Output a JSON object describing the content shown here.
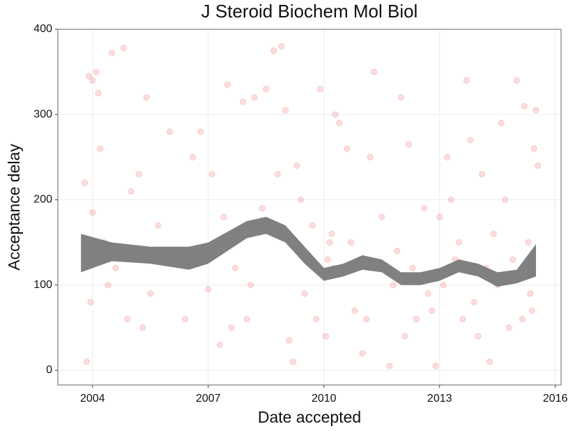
{
  "chart_data": {
    "type": "scatter",
    "title": "J Steroid Biochem Mol Biol",
    "x_label": "Date accepted",
    "y_label": "Acceptance delay",
    "xlim": [
      2003.1,
      2016.15
    ],
    "ylim": [
      -17.2,
      400
    ],
    "xticks": [
      2004,
      2007,
      2010,
      2013,
      2016
    ],
    "yticks": [
      0,
      100,
      200,
      300,
      400
    ],
    "grid": true,
    "color": "#e31a1c",
    "x": [
      2003.8,
      2003.9,
      2004.0,
      2004.1,
      2004.15,
      2003.85,
      2004.0,
      2004.2,
      2004.5,
      2004.8,
      2004.3,
      2004.6,
      2004.9,
      2005.0,
      2005.2,
      2005.4,
      2005.5,
      2005.3,
      2005.7,
      2006.0,
      2006.2,
      2006.4,
      2006.6,
      2006.8,
      2007.0,
      2007.1,
      2007.3,
      2007.5,
      2007.7,
      2007.9,
      2008.0,
      2008.2,
      2008.4,
      2008.5,
      2008.7,
      2008.9,
      2009.0,
      2009.1,
      2009.2,
      2009.3,
      2009.5,
      2009.7,
      2009.9,
      2010.0,
      2010.05,
      2010.1,
      2010.15,
      2010.2,
      2010.25,
      2010.3,
      2010.4,
      2010.6,
      2010.8,
      2011.0,
      2011.2,
      2011.3,
      2011.5,
      2011.7,
      2011.8,
      2012.0,
      2012.2,
      2012.4,
      2012.6,
      2012.7,
      2012.8,
      2012.9,
      2013.0,
      2013.2,
      2013.4,
      2013.6,
      2013.7,
      2013.8,
      2013.9,
      2014.0,
      2014.1,
      2014.3,
      2014.4,
      2014.6,
      2014.7,
      2014.8,
      2015.0,
      2015.1,
      2015.2,
      2015.3,
      2015.4,
      2015.45,
      2015.5,
      2015.55,
      2004.4,
      2005.8,
      2006.9,
      2007.4,
      2008.1,
      2009.4,
      2010.7,
      2011.9,
      2012.3,
      2013.1,
      2013.3,
      2014.2,
      2014.9,
      2015.35,
      2003.95,
      2007.6,
      2008.8,
      2009.8,
      2011.1,
      2012.1,
      2013.5,
      2014.5,
      2015.15
    ],
    "y": [
      220,
      345,
      340,
      350,
      325,
      10,
      185,
      260,
      372,
      378,
      150,
      120,
      60,
      210,
      230,
      320,
      90,
      50,
      170,
      280,
      130,
      60,
      250,
      280,
      95,
      230,
      30,
      335,
      120,
      315,
      60,
      320,
      190,
      330,
      375,
      380,
      305,
      35,
      10,
      240,
      90,
      170,
      330,
      110,
      40,
      130,
      150,
      160,
      120,
      300,
      290,
      260,
      70,
      20,
      250,
      350,
      180,
      5,
      100,
      320,
      265,
      60,
      190,
      90,
      70,
      5,
      180,
      250,
      130,
      60,
      340,
      270,
      80,
      40,
      230,
      10,
      160,
      290,
      200,
      50,
      340,
      110,
      310,
      150,
      70,
      260,
      305,
      240,
      100,
      140,
      140,
      180,
      100,
      200,
      150,
      140,
      120,
      100,
      200,
      120,
      130,
      90,
      80,
      50,
      230,
      60,
      60,
      40,
      150,
      100,
      60
    ],
    "smooth": {
      "color": "#808080",
      "x": [
        2003.7,
        2004.5,
        2005.5,
        2006.5,
        2007.0,
        2008.0,
        2008.5,
        2009.0,
        2009.5,
        2010.0,
        2010.5,
        2011.0,
        2011.5,
        2012.0,
        2012.5,
        2013.0,
        2013.5,
        2014.0,
        2014.5,
        2015.0,
        2015.5
      ],
      "lower": [
        115,
        128,
        125,
        118,
        125,
        155,
        160,
        150,
        125,
        105,
        110,
        118,
        115,
        100,
        100,
        105,
        115,
        110,
        98,
        102,
        110
      ],
      "upper": [
        160,
        150,
        145,
        145,
        150,
        175,
        180,
        170,
        145,
        120,
        125,
        135,
        130,
        115,
        115,
        120,
        130,
        125,
        115,
        118,
        148
      ]
    }
  }
}
